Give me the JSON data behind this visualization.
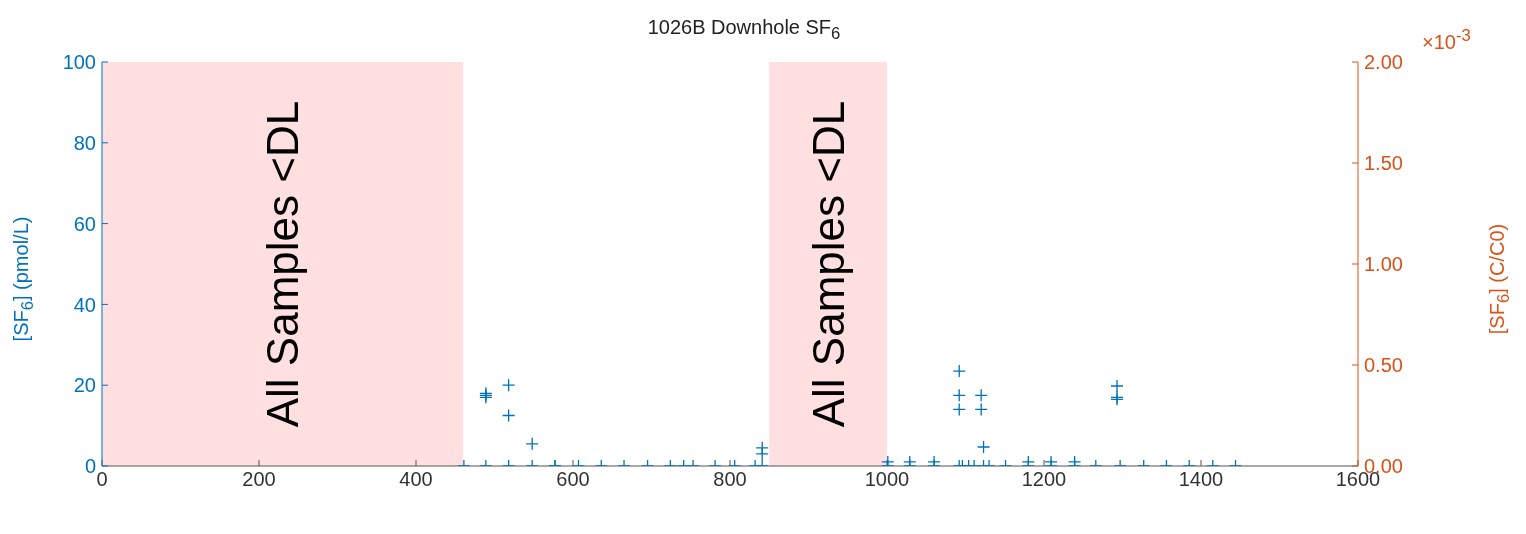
{
  "chart_data": {
    "type": "scatter",
    "title": "1026B Downhole SF$_{6}$",
    "ylabel": "[SF$_{6}$] (pmol/L)",
    "y2label": "[SF$_{6}$] (C/C0)",
    "annotations": [
      "×10$^{-3}$"
    ],
    "series": [
      {
        "color": "#0072bd",
        "x": [
          461,
          489,
          489,
          489,
          489,
          518,
          518,
          518,
          548,
          548,
          577,
          577,
          607,
          636,
          665,
          695,
          724,
          741,
          753,
          781,
          806,
          832,
          841,
          841,
          841,
          1001,
          1001,
          1029,
          1029,
          1060,
          1060,
          1092,
          1092,
          1092,
          1092,
          1096,
          1104,
          1111,
          1120,
          1120,
          1123,
          1123,
          1130,
          1151,
          1180,
          1180,
          1209,
          1209,
          1239,
          1239,
          1266,
          1293,
          1293,
          1293,
          1297,
          1327,
          1356,
          1385,
          1415,
          1444
        ],
        "values": [
          0,
          0,
          17.5,
          18,
          17,
          0,
          20,
          12.5,
          0,
          5.5,
          0,
          0,
          0,
          0,
          0,
          0,
          0,
          0,
          0,
          0,
          0,
          0,
          0,
          3,
          4.5,
          0,
          1,
          0,
          1,
          0,
          1,
          0,
          23.5,
          17.5,
          14,
          0,
          0,
          0,
          17.5,
          14,
          0,
          4.7,
          0,
          0,
          0,
          1,
          0,
          1,
          0,
          1,
          0,
          19.8,
          17,
          16.5,
          0,
          0,
          0,
          0,
          0,
          0
        ]
      }
    ],
    "xlim": [
      0,
      1600
    ],
    "xticks": [
      0,
      200,
      400,
      600,
      800,
      1000,
      1200,
      1400,
      1600
    ],
    "ylim": [
      0,
      100
    ],
    "yticks": [
      0,
      20,
      40,
      60,
      80,
      100
    ],
    "y2lim": [
      0,
      2
    ],
    "y2ticks": [
      {
        "value": 0,
        "label": "0.00"
      },
      {
        "value": 0.5,
        "label": "0.50"
      },
      {
        "value": 1,
        "label": "1.00"
      },
      {
        "value": 1.5,
        "label": "1.50"
      },
      {
        "value": 2,
        "label": "2.00"
      }
    ],
    "bands": [
      {
        "axis": "x",
        "from": 0,
        "to": 460,
        "label": "All Samples <DL",
        "color": "#ffdfe0"
      },
      {
        "axis": "x",
        "from": 850,
        "to": 1000,
        "label": "All Samples <DL",
        "color": "#ffdfe0"
      }
    ],
    "grid": false,
    "legend": false,
    "marker": "cross"
  }
}
